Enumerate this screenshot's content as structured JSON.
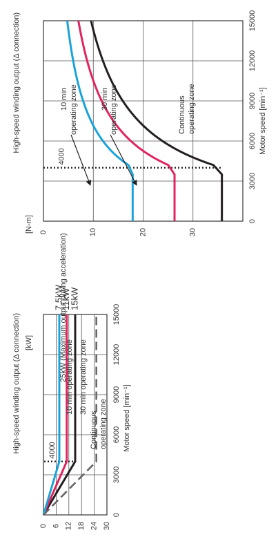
{
  "chart_data": [
    {
      "type": "line",
      "title": "High-speed winding output (Δ connection)",
      "y_unit_label": "[kW]",
      "xlabel": "Motor speed  [min⁻¹]",
      "xlim": [
        0,
        15000
      ],
      "ylim": [
        0,
        30
      ],
      "x_ticks": [
        0,
        3000,
        6000,
        9000,
        12000,
        15000
      ],
      "y_ticks": [
        0,
        6,
        12,
        18,
        24,
        30
      ],
      "grid": true,
      "series": [
        {
          "name": "15kW",
          "color": "#231f20",
          "style": "solid",
          "x": [
            0,
            4000,
            15000
          ],
          "y": [
            0,
            15,
            15
          ]
        },
        {
          "name": "11kW",
          "color": "#e0245e",
          "style": "solid",
          "x": [
            0,
            4000,
            15000
          ],
          "y": [
            0,
            11,
            11
          ]
        },
        {
          "name": "7.5kW",
          "color": "#1aa3d9",
          "style": "solid",
          "x": [
            0,
            4000,
            15000
          ],
          "y": [
            0,
            7.5,
            7.5
          ]
        },
        {
          "name": "",
          "color": "#666666",
          "style": "dashed",
          "x": [
            0,
            4000,
            15000
          ],
          "y": [
            0,
            25,
            25
          ]
        }
      ],
      "annotations": {
        "max_output": "25kW (Maximum output during acceleration)",
        "zone_10min": "10 min operating zone",
        "zone_30min": "30 min operating zone",
        "zone_cont_1": "Continuous",
        "zone_cont_2": "operating zone",
        "speed_marker": "4000"
      }
    },
    {
      "type": "line",
      "title": "High-speed winding output (Δ connection)",
      "y_unit_label": "[N-m]",
      "xlabel": "Motor speed  [min⁻¹]",
      "xlim": [
        0,
        15000
      ],
      "ylim": [
        0,
        40
      ],
      "x_ticks": [
        0,
        3000,
        6000,
        9000,
        12000,
        15000
      ],
      "y_ticks": [
        0,
        10,
        20,
        30
      ],
      "grid": true,
      "series": [
        {
          "name": "10 min operating zone",
          "color": "#231f20",
          "style": "solid",
          "x": [
            0,
            3500,
            4000,
            6000,
            9000,
            12000,
            15000
          ],
          "y": [
            35.8,
            35.8,
            35.8,
            23.9,
            15.9,
            11.9,
            9.5
          ]
        },
        {
          "name": "30 min operating zone",
          "color": "#e0245e",
          "style": "solid",
          "x": [
            0,
            3500,
            4000,
            6000,
            9000,
            12000,
            15000
          ],
          "y": [
            26.3,
            26.3,
            26.3,
            17.5,
            11.7,
            8.8,
            7.0
          ]
        },
        {
          "name": "Continuous operating zone",
          "color": "#1aa3d9",
          "style": "solid",
          "x": [
            0,
            3500,
            4000,
            6000,
            9000,
            12000,
            15000
          ],
          "y": [
            17.9,
            17.9,
            17.9,
            11.9,
            8.0,
            6.0,
            4.8
          ]
        }
      ],
      "annotations": {
        "zone_10min_1": "10 min",
        "zone_10min_2": "operating zone",
        "zone_30min_1": "30 min",
        "zone_30min_2": "operating zone",
        "zone_cont_1": "Continuous",
        "zone_cont_2": "operating zone",
        "speed_marker": "4000"
      }
    }
  ]
}
